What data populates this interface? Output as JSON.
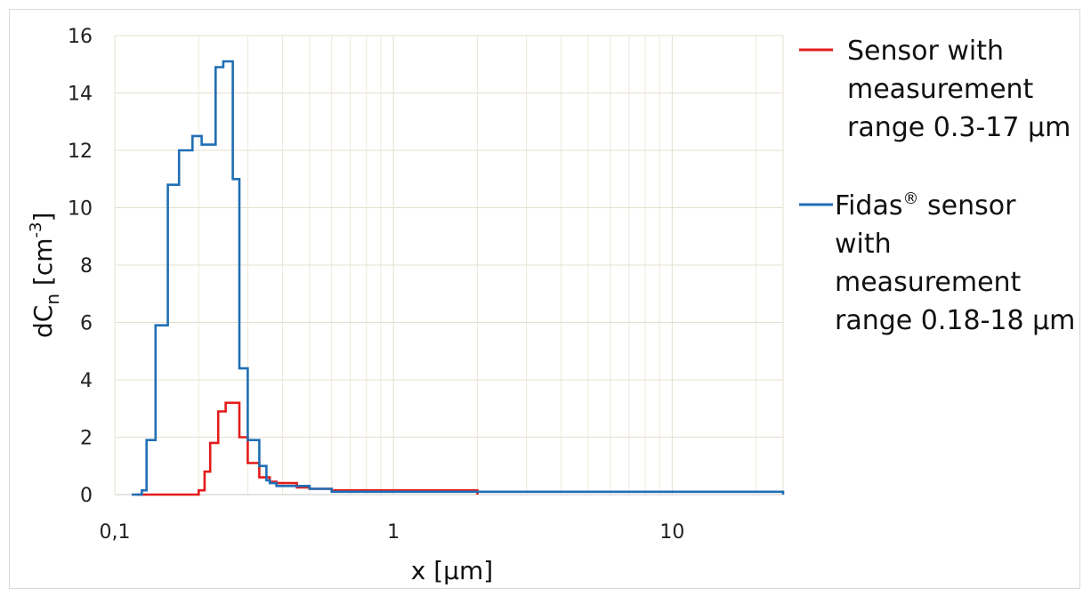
{
  "chart_data": {
    "type": "line",
    "step": true,
    "xlabel": "x [µm]",
    "ylabel_main": "dC",
    "ylabel_sub": "n",
    "ylabel_unit_pre": " [cm",
    "ylabel_unit_sup": "-3",
    "ylabel_unit_post": "]",
    "x_scale": "log",
    "xlim": [
      0.1,
      25
    ],
    "ylim": [
      0,
      16
    ],
    "x_ticks": [
      {
        "value": 0.1,
        "label": "0,1"
      },
      {
        "value": 1,
        "label": "1"
      },
      {
        "value": 10,
        "label": "10"
      }
    ],
    "y_ticks": [
      {
        "value": 0,
        "label": "0"
      },
      {
        "value": 2,
        "label": "2"
      },
      {
        "value": 4,
        "label": "4"
      },
      {
        "value": 6,
        "label": "6"
      },
      {
        "value": 8,
        "label": "8"
      },
      {
        "value": 10,
        "label": "10"
      },
      {
        "value": 12,
        "label": "12"
      },
      {
        "value": 14,
        "label": "14"
      },
      {
        "value": 16,
        "label": "16"
      }
    ],
    "grid": {
      "x_major": true,
      "x_minor": true,
      "y_major": true
    },
    "legend_position": "right",
    "series": [
      {
        "name": "Sensor with measurement range 0.3-17 µm",
        "legend_lines": [
          "Sensor with",
          "measurement",
          "range 0.3-17 µm"
        ],
        "color": "#e31b1b",
        "x": [
          0.12,
          0.2,
          0.21,
          0.22,
          0.235,
          0.25,
          0.265,
          0.28,
          0.3,
          0.33,
          0.36,
          0.38,
          0.4,
          0.45,
          0.5,
          0.6,
          2.0
        ],
        "y": [
          0,
          0.15,
          0.8,
          1.8,
          2.9,
          3.2,
          3.2,
          2.0,
          1.1,
          0.6,
          0.45,
          0.4,
          0.4,
          0.25,
          0.2,
          0.15,
          0
        ]
      },
      {
        "name": "Fidas® sensor with measurement range 0.18-18 µm",
        "legend_lines_first": " Fidas",
        "legend_sup": "®",
        "legend_lines_first_tail": " sensor",
        "legend_lines": [
          "with",
          "measurement",
          "range 0.18-18 µm"
        ],
        "color": "#1f6fb5",
        "x": [
          0.115,
          0.125,
          0.13,
          0.14,
          0.155,
          0.17,
          0.19,
          0.205,
          0.23,
          0.245,
          0.265,
          0.28,
          0.3,
          0.33,
          0.35,
          0.36,
          0.38,
          0.4,
          0.5,
          0.6,
          25
        ],
        "y": [
          0,
          0.15,
          1.9,
          5.9,
          10.8,
          12.0,
          12.5,
          12.2,
          14.9,
          15.1,
          11.0,
          4.4,
          1.9,
          1.0,
          0.5,
          0.4,
          0.3,
          0.3,
          0.2,
          0.1,
          0
        ]
      }
    ]
  }
}
